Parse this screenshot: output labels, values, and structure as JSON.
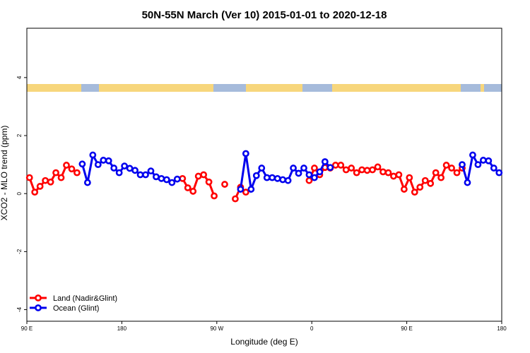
{
  "chart_data": {
    "type": "line",
    "title": "50N-55N March (Ver 10)   2015-01-01 to 2020-12-18",
    "x_label": "Longitude (deg E)",
    "y_label": "XCO2 - MLO trend (ppm)",
    "x": [
      92.5,
      97.5,
      102.5,
      107.5,
      112.5,
      117.5,
      122.5,
      127.5,
      132.5,
      137.5,
      142.5,
      147.5,
      152.5,
      157.5,
      162.5,
      167.5,
      172.5,
      177.5,
      182.5,
      187.5,
      192.5,
      197.5,
      202.5,
      207.5,
      212.5,
      217.5,
      222.5,
      227.5,
      232.5,
      237.5,
      242.5,
      247.5,
      252.5,
      257.5,
      262.5,
      267.5,
      272.5,
      277.5,
      282.5,
      287.5,
      292.5,
      297.5,
      302.5,
      307.5,
      312.5,
      317.5,
      322.5,
      327.5,
      332.5,
      337.5,
      342.5,
      347.5,
      352.5,
      357.5,
      362.5,
      367.5,
      372.5,
      377.5,
      382.5,
      387.5,
      392.5,
      397.5,
      402.5,
      407.5,
      412.5,
      417.5,
      422.5,
      427.5,
      432.5,
      437.5,
      442.5,
      447.5,
      452.5,
      457.5,
      462.5,
      467.5,
      472.5,
      477.5,
      482.5,
      487.5,
      492.5,
      497.5,
      502.5,
      507.5,
      512.5,
      517.5,
      522.5,
      527.5,
      532.5,
      537.5
    ],
    "series": [
      {
        "name": "Land (Nadir&Glint)",
        "color": "#ff0000",
        "values": [
          0.55,
          0.05,
          0.25,
          0.45,
          0.4,
          0.72,
          0.55,
          0.98,
          0.85,
          0.72,
          null,
          null,
          null,
          null,
          null,
          null,
          null,
          null,
          null,
          null,
          null,
          null,
          null,
          null,
          null,
          null,
          null,
          null,
          null,
          0.52,
          0.2,
          0.08,
          0.6,
          0.65,
          0.4,
          -0.08,
          null,
          0.32,
          null,
          -0.18,
          0.22,
          0.05,
          null,
          null,
          null,
          null,
          null,
          null,
          null,
          null,
          null,
          null,
          null,
          0.45,
          0.88,
          0.65,
          0.9,
          0.88,
          0.98,
          0.98,
          0.82,
          0.88,
          0.72,
          0.82,
          0.8,
          0.82,
          0.92,
          0.75,
          0.72,
          0.6,
          0.65,
          0.15,
          0.55,
          0.05,
          0.22,
          0.45,
          0.35,
          0.72,
          0.55,
          0.98,
          0.88,
          0.72,
          0.88,
          null,
          null,
          null,
          null,
          null,
          null,
          null
        ]
      },
      {
        "name": "Ocean (Glint)",
        "color": "#0000ee",
        "values": [
          null,
          null,
          null,
          null,
          null,
          null,
          null,
          null,
          null,
          null,
          1.02,
          0.38,
          1.33,
          1.0,
          1.15,
          1.13,
          0.88,
          0.72,
          0.95,
          0.87,
          0.8,
          0.65,
          0.65,
          0.78,
          0.58,
          0.52,
          0.48,
          0.38,
          0.5,
          null,
          null,
          null,
          null,
          null,
          null,
          null,
          null,
          null,
          null,
          null,
          0.15,
          1.38,
          0.15,
          0.62,
          0.88,
          0.55,
          0.55,
          0.52,
          0.48,
          0.45,
          0.88,
          0.7,
          0.88,
          0.65,
          0.55,
          0.75,
          1.1,
          0.9,
          null,
          null,
          null,
          null,
          null,
          null,
          null,
          null,
          null,
          null,
          null,
          null,
          null,
          null,
          null,
          null,
          null,
          null,
          null,
          null,
          null,
          null,
          null,
          null,
          1.0,
          0.38,
          1.33,
          1.0,
          1.15,
          1.13,
          0.88,
          0.72
        ]
      }
    ],
    "xlim": [
      90,
      540
    ],
    "xticks": [
      {
        "value": 90,
        "label": "90 E"
      },
      180,
      {
        "value": 270,
        "label": "90 W"
      },
      {
        "value": 360,
        "label": "0"
      },
      {
        "value": 450,
        "label": "90 E"
      },
      {
        "value": 540,
        "label": "180"
      }
    ],
    "ylim": [
      -4.4,
      5.7
    ],
    "yticks": [
      -4,
      -2,
      0,
      2,
      4
    ],
    "legend": "bottom-left"
  }
}
